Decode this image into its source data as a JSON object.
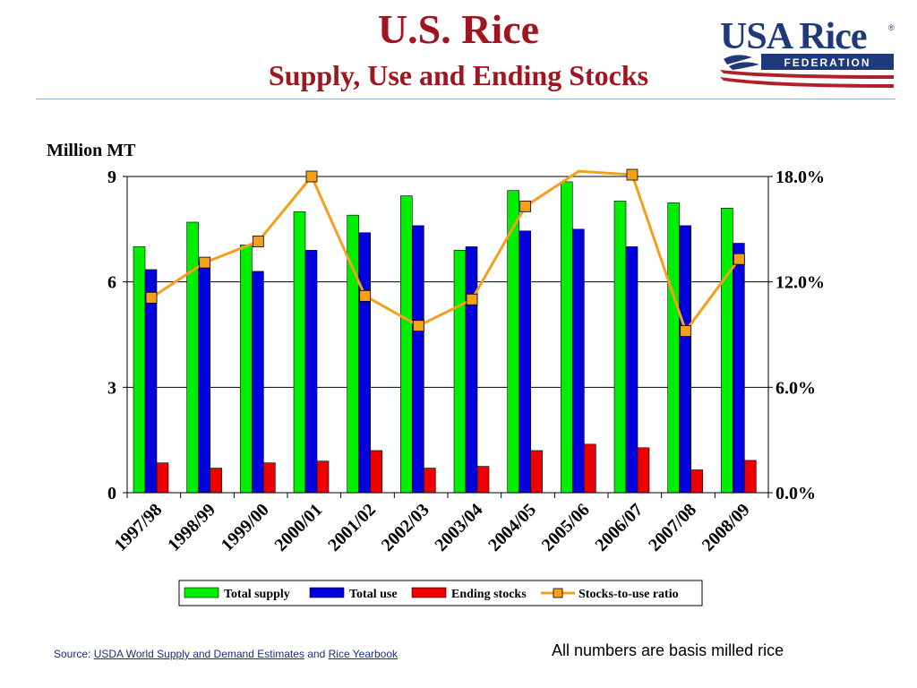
{
  "slide": {
    "title": "U.S. Rice",
    "subtitle": "Supply, Use and Ending Stocks",
    "logo_text_main": "USA Rice",
    "logo_registered": "®",
    "logo_text_sub": "FEDERATION",
    "source_prefix": "Source: ",
    "source_link1": "USDA World Supply and Demand Estimates",
    "source_and": " and ",
    "source_link2": "Rice Yearbook",
    "note": "All numbers are basis milled rice"
  },
  "colors": {
    "title": "#a0151f",
    "total_supply": "#00ee00",
    "total_use": "#0000dd",
    "ending_stocks": "#ee0000",
    "ratio_line": "#f5a01a",
    "logo_blue": "#1f3a7a",
    "logo_red": "#b0202a"
  },
  "chart_data": {
    "type": "bar",
    "ylabel": "Million MT",
    "ylim": [
      0,
      9
    ],
    "yticks": [
      "0",
      "3",
      "6",
      "9"
    ],
    "y2lim": [
      0,
      18
    ],
    "y2ticks": [
      "0.0%",
      "6.0%",
      "12.0%",
      "18.0%"
    ],
    "grid": true,
    "legend_position": "bottom",
    "categories": [
      "1997/98",
      "1998/99",
      "1999/00",
      "2000/01",
      "2001/02",
      "2002/03",
      "2003/04",
      "2004/05",
      "2005/06",
      "2006/07",
      "2007/08",
      "2008/09"
    ],
    "series": [
      {
        "name": "Total supply",
        "kind": "bar",
        "axis": "left",
        "values": [
          7.0,
          7.7,
          7.05,
          8.0,
          7.9,
          8.45,
          6.9,
          8.6,
          8.85,
          8.3,
          8.25,
          8.1
        ]
      },
      {
        "name": "Total use",
        "kind": "bar",
        "axis": "left",
        "values": [
          6.35,
          6.55,
          6.3,
          6.9,
          7.4,
          7.6,
          7.0,
          7.45,
          7.5,
          7.0,
          7.6,
          7.1
        ]
      },
      {
        "name": "Ending stocks",
        "kind": "bar",
        "axis": "left",
        "values": [
          0.85,
          0.7,
          0.85,
          0.9,
          1.2,
          0.7,
          0.75,
          1.2,
          1.38,
          1.28,
          0.65,
          0.92
        ]
      },
      {
        "name": "Stocks-to-use ratio",
        "kind": "line",
        "axis": "right",
        "values": [
          11.1,
          13.1,
          14.3,
          18.0,
          11.2,
          9.5,
          11.0,
          16.3,
          18.3,
          18.1,
          9.2,
          13.3
        ]
      }
    ]
  }
}
